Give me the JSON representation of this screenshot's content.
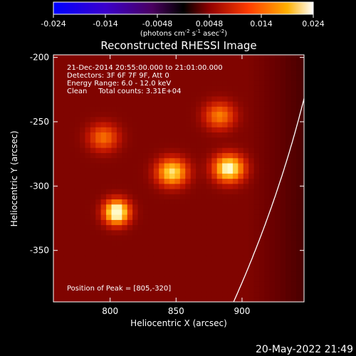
{
  "colorbar": {
    "ticks": [
      "-0.024",
      "-0.014",
      "-0.0048",
      "0.0048",
      "0.014",
      "0.024"
    ],
    "unit_main": "(photons cm",
    "unit_sup1": "-2",
    "unit_mid": " s",
    "unit_sup2": "-1",
    "unit_end": " asec",
    "unit_sup3": "-2",
    "unit_close": ")"
  },
  "chart_data": {
    "type": "heatmap",
    "title": "Reconstructed RHESSI Image",
    "xlabel": "Heliocentric X (arcsec)",
    "ylabel": "Heliocentric Y (arcsec)",
    "xlim": [
      757,
      947
    ],
    "ylim": [
      -390,
      -198
    ],
    "x_ticks": [
      800,
      850,
      900
    ],
    "y_ticks": [
      -200,
      -250,
      -300,
      -350
    ],
    "colorbar_range": [
      -0.024,
      0.024
    ],
    "colormap": [
      "#0000ff",
      "#5a0066",
      "#000000",
      "#b00000",
      "#ff5500",
      "#ffc000",
      "#ffffff"
    ],
    "sources": [
      {
        "x": 805,
        "y": -320,
        "intensity": 0.024
      },
      {
        "x": 890,
        "y": -286,
        "intensity": 0.021
      },
      {
        "x": 847,
        "y": -289,
        "intensity": 0.018
      },
      {
        "x": 883,
        "y": -245,
        "intensity": 0.011
      },
      {
        "x": 795,
        "y": -262,
        "intensity": 0.01
      }
    ],
    "peak": [
      805,
      -320
    ],
    "limb_color": "#ffffff"
  },
  "info": {
    "line1": "21-Dec-2014 20:55:00.000 to 21:01:00.000",
    "line2": "Detectors: 3F 6F 7F 9F, Att 0",
    "line3": "Energy Range: 6.0 - 12.0 keV",
    "line4": "Clean     Total counts: 3.31E+04"
  },
  "peak_text": "Position of Peak = [805,-320]",
  "footer_date": "20-May-2022 21:49"
}
